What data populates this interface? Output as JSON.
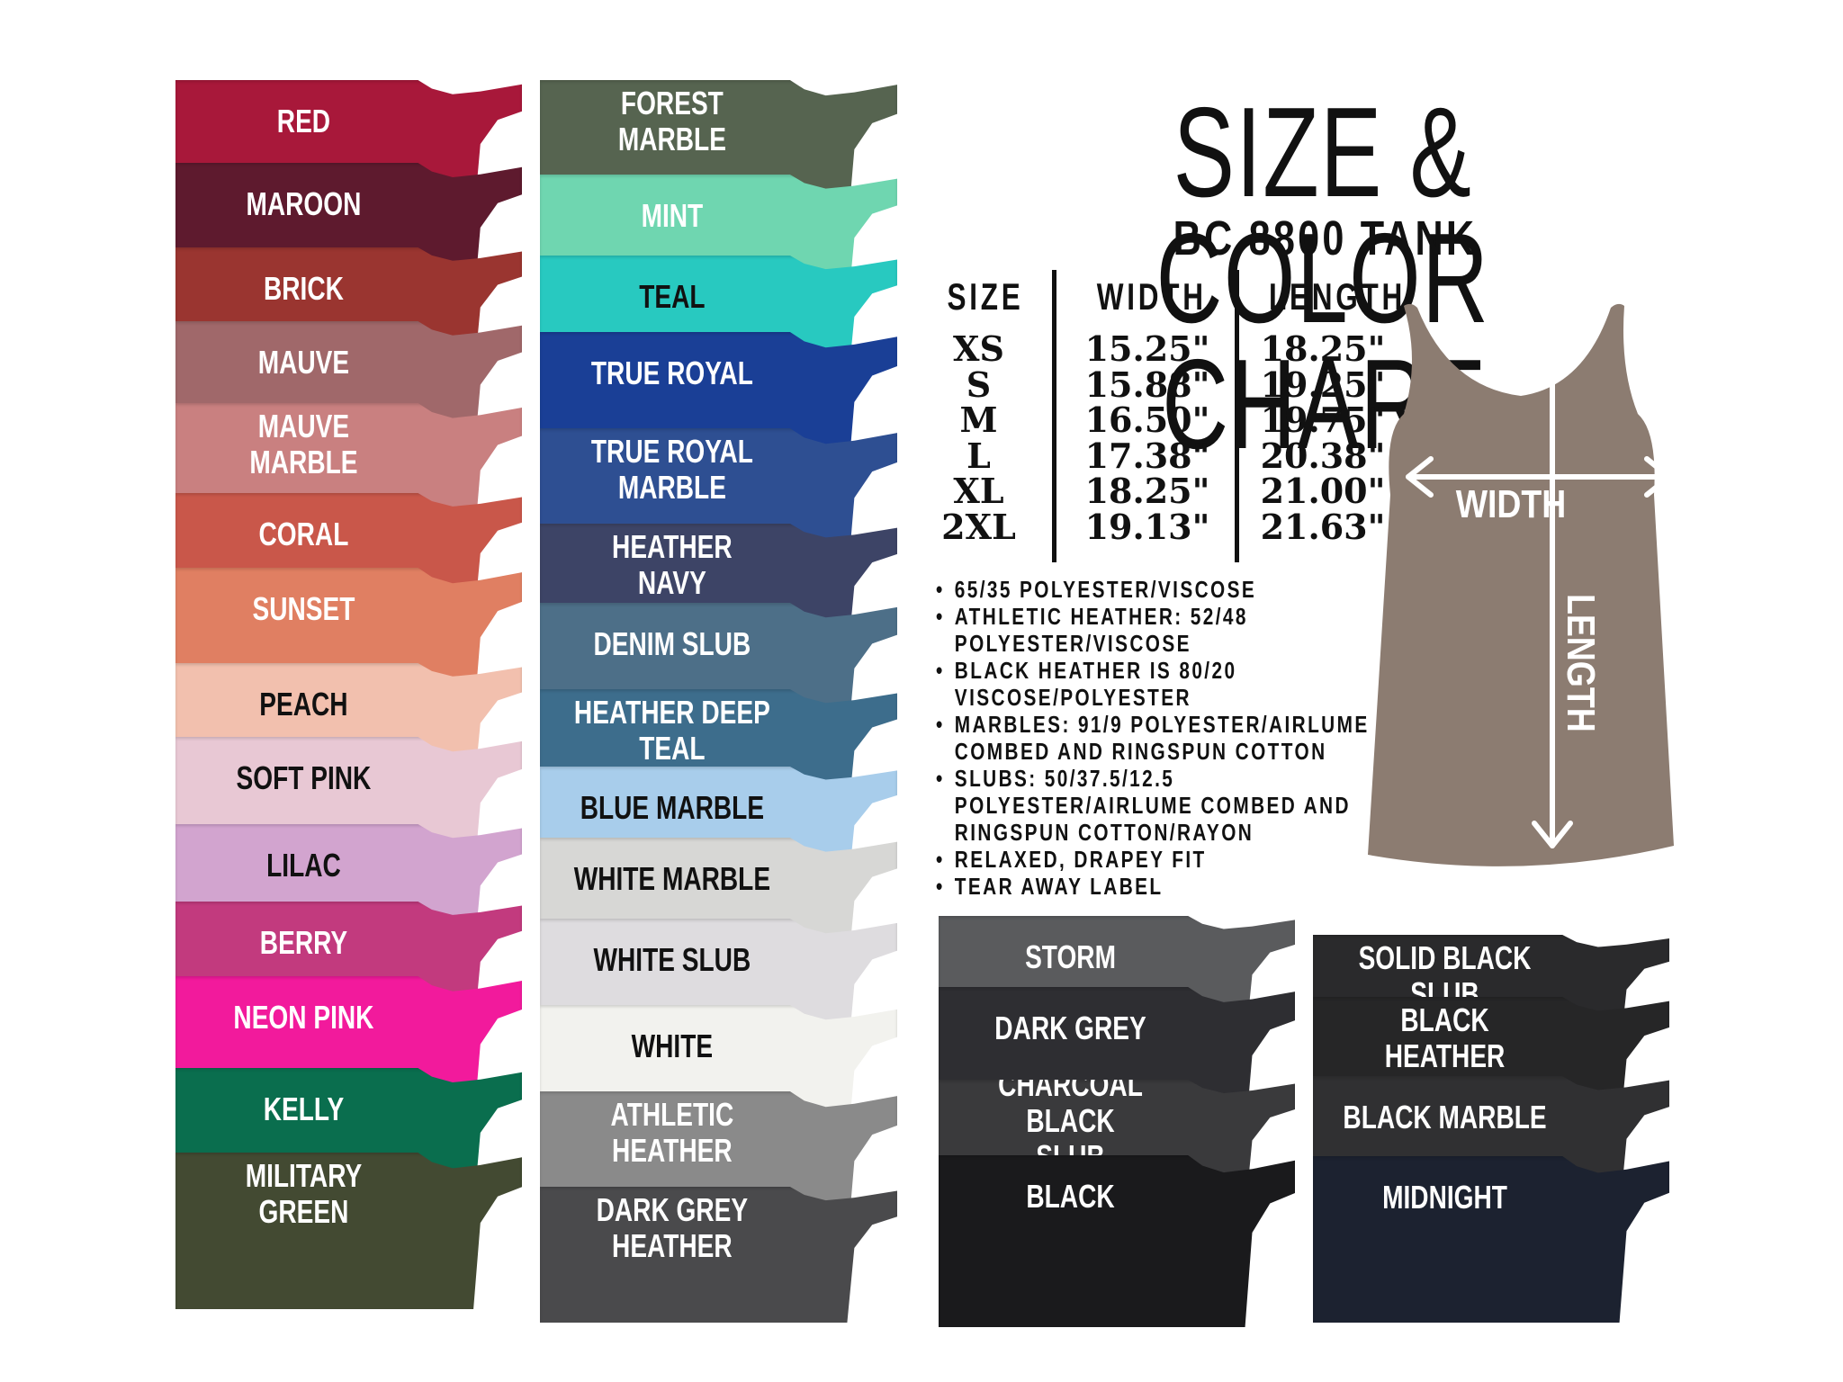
{
  "title": "SIZE & COLOR CHART",
  "subtitle": "BC 8800 TANK",
  "size_table": {
    "headers": [
      "SIZE",
      "WIDTH",
      "LENGTH"
    ],
    "sizes": [
      "XS",
      "S",
      "M",
      "L",
      "XL",
      "2XL"
    ],
    "widths": [
      "15.25\"",
      "15.88\"",
      "16.50\"",
      "17.38\"",
      "18.25\"",
      "19.13\""
    ],
    "lengths": [
      "18.25\"",
      "19.25\"",
      "19.75\"",
      "20.38\"",
      "21.00\"",
      "21.63\""
    ]
  },
  "features": [
    "65/35 POLYESTER/VISCOSE",
    "ATHLETIC HEATHER: 52/48 POLYESTER/VISCOSE",
    "BLACK HEATHER IS 80/20 VISCOSE/POLYESTER",
    "MARBLES: 91/9 POLYESTER/AIRLUME COMBED AND RINGSPUN COTTON",
    "SLUBS: 50/37.5/12.5 POLYESTER/AIRLUME COMBED AND RINGSPUN COTTON/RAYON",
    "RELAXED, DRAPEY FIT",
    "TEAR AWAY LABEL"
  ],
  "diagram": {
    "width_label": "WIDTH",
    "length_label": "LENGTH",
    "tank_color": "#8c7c71"
  },
  "colors": {
    "column1": [
      {
        "name": "RED",
        "hex": "#a8183a",
        "text": "#ffffff"
      },
      {
        "name": "MAROON",
        "hex": "#5e1a2e",
        "text": "#ffffff"
      },
      {
        "name": "BRICK",
        "hex": "#9a3530",
        "text": "#ffffff"
      },
      {
        "name": "MAUVE",
        "hex": "#a0686a",
        "text": "#ffffff"
      },
      {
        "name": "MAUVE MARBLE",
        "hex": "#c98080",
        "text": "#ffffff"
      },
      {
        "name": "CORAL",
        "hex": "#c9574a",
        "text": "#ffffff"
      },
      {
        "name": "SUNSET",
        "hex": "#e07f62",
        "text": "#ffffff"
      },
      {
        "name": "PEACH",
        "hex": "#f2c0ae",
        "text": "#111111"
      },
      {
        "name": "SOFT PINK",
        "hex": "#e8c8d4",
        "text": "#111111"
      },
      {
        "name": "LILAC",
        "hex": "#d2a4cf",
        "text": "#111111"
      },
      {
        "name": "BERRY",
        "hex": "#c23a7e",
        "text": "#ffffff"
      },
      {
        "name": "NEON PINK",
        "hex": "#f21a9c",
        "text": "#ffffff"
      },
      {
        "name": "KELLY",
        "hex": "#0a6e4e",
        "text": "#ffffff"
      },
      {
        "name": "MILITARY GREEN",
        "hex": "#434a32",
        "text": "#ffffff"
      }
    ],
    "column2": [
      {
        "name": "FOREST MARBLE",
        "hex": "#566450",
        "text": "#ffffff"
      },
      {
        "name": "MINT",
        "hex": "#6fd6b0",
        "text": "#ffffff"
      },
      {
        "name": "TEAL",
        "hex": "#28c9c0",
        "text": "#111111"
      },
      {
        "name": "TRUE ROYAL",
        "hex": "#1a3f96",
        "text": "#ffffff"
      },
      {
        "name": "TRUE ROYAL\nMARBLE",
        "hex": "#2e4f92",
        "text": "#ffffff"
      },
      {
        "name": "HEATHER\nNAVY",
        "hex": "#3d4466",
        "text": "#ffffff"
      },
      {
        "name": "DENIM SLUB",
        "hex": "#4d6f88",
        "text": "#ffffff"
      },
      {
        "name": "HEATHER DEEP\nTEAL",
        "hex": "#3d6d8c",
        "text": "#ffffff"
      },
      {
        "name": "BLUE MARBLE",
        "hex": "#a8cdeb",
        "text": "#111111"
      },
      {
        "name": "WHITE MARBLE",
        "hex": "#d7d7d5",
        "text": "#111111"
      },
      {
        "name": "WHITE SLUB",
        "hex": "#dedcdf",
        "text": "#111111"
      },
      {
        "name": "WHITE",
        "hex": "#f2f2ee",
        "text": "#111111"
      },
      {
        "name": "ATHLETIC HEATHER",
        "hex": "#8a8a8a",
        "text": "#ffffff"
      },
      {
        "name": "DARK GREY\nHEATHER",
        "hex": "#4a4a4c",
        "text": "#ffffff"
      }
    ],
    "column3": [
      {
        "name": "STORM",
        "hex": "#5a5b5d",
        "text": "#ffffff"
      },
      {
        "name": "DARK GREY",
        "hex": "#2e2e32",
        "text": "#ffffff"
      },
      {
        "name": "CHARCOAL BLACK\nSLUB",
        "hex": "#3a3a3c",
        "text": "#ffffff"
      },
      {
        "name": "BLACK",
        "hex": "#1a1a1c",
        "text": "#ffffff"
      }
    ],
    "column4": [
      {
        "name": "SOLID BLACK\nSLUB",
        "hex": "#2a2a2c",
        "text": "#ffffff"
      },
      {
        "name": "BLACK HEATHER",
        "hex": "#262627",
        "text": "#ffffff"
      },
      {
        "name": "BLACK MARBLE",
        "hex": "#303032",
        "text": "#ffffff"
      },
      {
        "name": "MIDNIGHT",
        "hex": "#1c2230",
        "text": "#ffffff"
      }
    ]
  }
}
